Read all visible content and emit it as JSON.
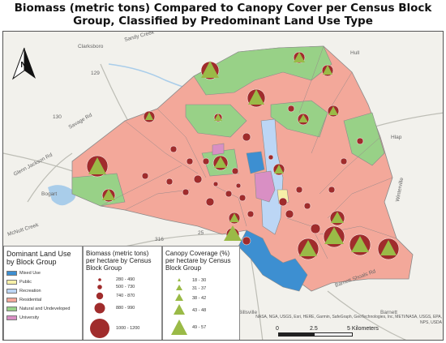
{
  "title_line1": "Biomass (metric tons) Compared to Canopy Cover per Census Block",
  "title_line2": "Group, Classified by Predominant Land Use Type",
  "colors": {
    "mixed_use": "#3d8fd1",
    "public": "#f7f0a8",
    "recreation": "#bcd6f5",
    "residential": "#f3a89a",
    "natural": "#98d187",
    "university": "#d98fc4",
    "biomass": "#a02c2c",
    "canopy": "#9aba47",
    "water": "#a9cdea",
    "base": "#f2f1ec"
  },
  "place_labels": [
    "Clarksboro",
    "Bogart",
    "Hull",
    "Winterville",
    "Barnett",
    "Hlap",
    "Billsville"
  ],
  "road_labels": [
    "129",
    "130",
    "316",
    "25",
    "Savage Rd",
    "Glenn Jackson Rd",
    "McNutt Creek",
    "Barnett Shoals Rd",
    "Sandy Creek"
  ],
  "legends": {
    "land_use": {
      "title_line1": "Dominant Land Use",
      "title_line2": "by Block Group",
      "items": [
        {
          "label": "Mixed Use",
          "color": "#3d8fd1"
        },
        {
          "label": "Public",
          "color": "#f7f0a8"
        },
        {
          "label": "Recreation",
          "color": "#bcd6f5"
        },
        {
          "label": "Residential",
          "color": "#f3a89a"
        },
        {
          "label": "Natural and Undeveloped",
          "color": "#98d187"
        },
        {
          "label": "University",
          "color": "#d98fc4"
        }
      ]
    },
    "biomass": {
      "title_line1": "Biomass (metric tons)",
      "title_line2": "per hectare by Census",
      "title_line3": "Block Group",
      "items": [
        "280 - 490",
        "500 - 730",
        "740 - 870",
        "880 - 990",
        "1000 - 1200"
      ]
    },
    "canopy": {
      "title_line1": "Canopy Coverage (%)",
      "title_line2": "per hectare by Census",
      "title_line3": "Block Group",
      "items": [
        "18 - 30",
        "31 - 37",
        "38 - 42",
        "43 - 48",
        "49 - 57"
      ]
    }
  },
  "attribution_line1": "NASA, NGA, USGS, Esri, HERE, Garmin, SafeGraph, GeoTechnologies, Inc, METI/NASA, USGS, EPA,",
  "attribution_line2": "NPS, USDA",
  "scale": {
    "label0": "0",
    "label1": "2.5",
    "label2": "5 Kilometers"
  },
  "north_label": "N"
}
